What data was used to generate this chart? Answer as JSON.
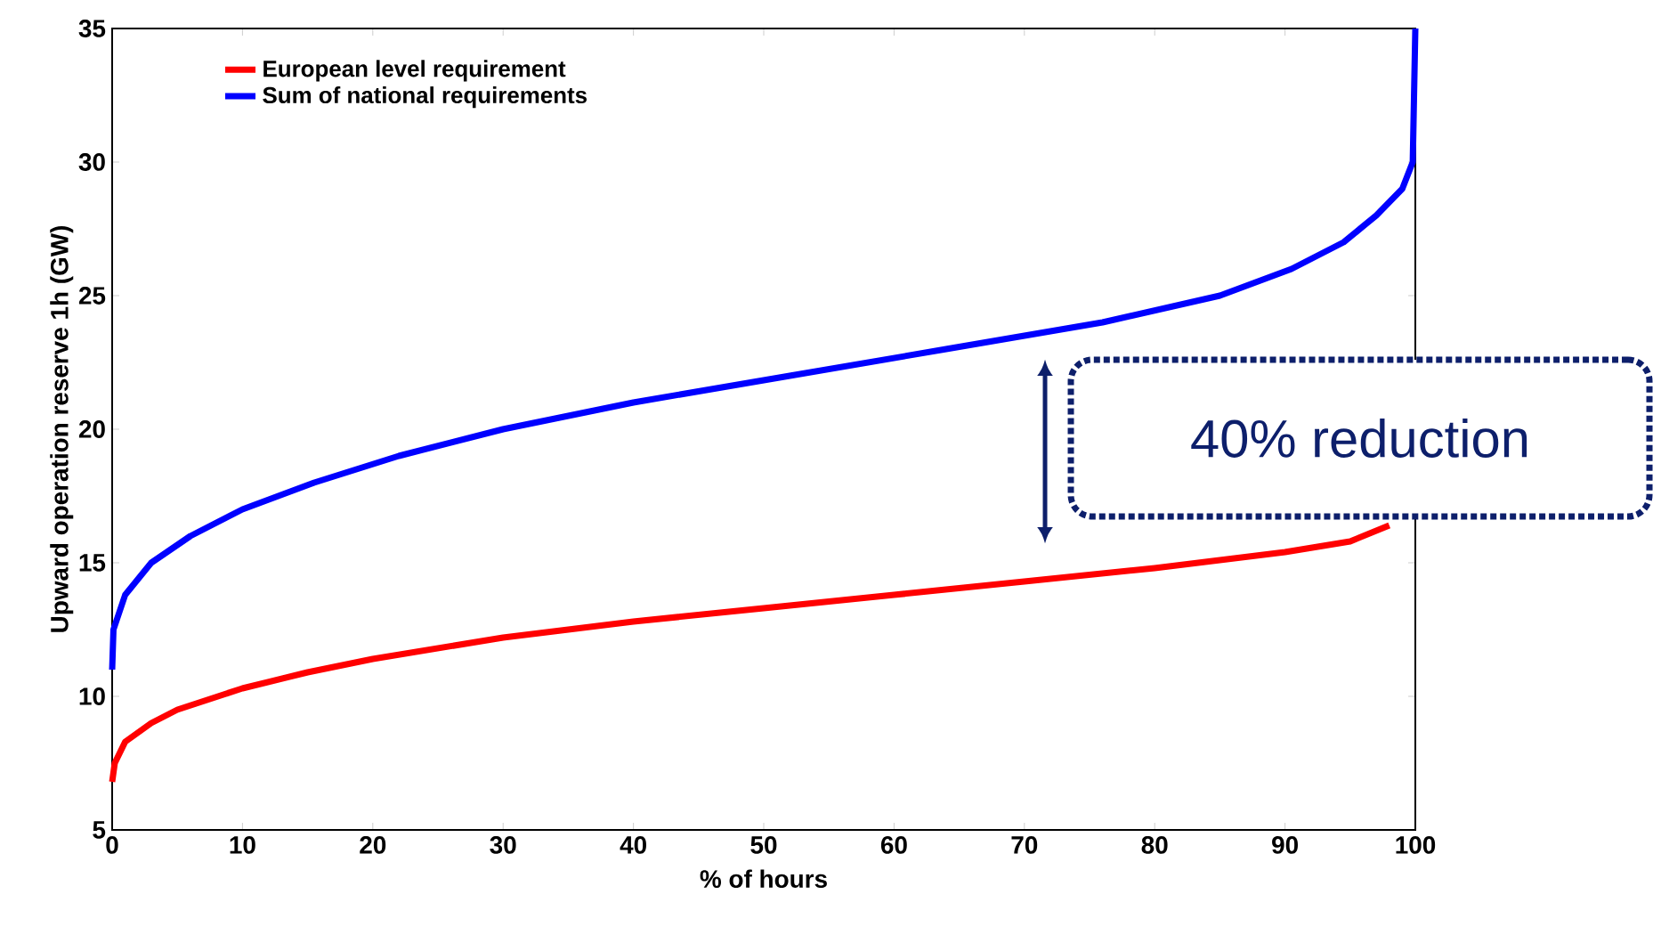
{
  "chart_data": {
    "type": "line",
    "xlabel": "% of hours",
    "ylabel": "Upward operation reserve 1h (GW)",
    "xlim": [
      0,
      100
    ],
    "ylim": [
      5,
      35
    ],
    "xticks": [
      0,
      10,
      20,
      30,
      40,
      50,
      60,
      70,
      80,
      90,
      100
    ],
    "yticks": [
      5,
      10,
      15,
      20,
      25,
      30,
      35
    ],
    "grid": false,
    "legend": "top left",
    "marker": "none",
    "line_style": "solid",
    "annotations": [
      "40% reduction"
    ],
    "series": [
      {
        "name": "European level requirement",
        "color": "#ff0000",
        "x": [
          0,
          0.2,
          1,
          3,
          5,
          10,
          15,
          20,
          30,
          40,
          50,
          60,
          70,
          80,
          90,
          95,
          98
        ],
        "values": [
          6.8,
          7.5,
          8.3,
          9,
          9.5,
          10.3,
          10.9,
          11.4,
          12.2,
          12.8,
          13.3,
          13.8,
          14.3,
          14.8,
          15.4,
          15.8,
          16.4
        ]
      },
      {
        "name": "Sum of national requirements",
        "color": "#0000ff",
        "x": [
          0,
          0.1,
          1,
          3,
          6,
          10,
          15.5,
          22,
          30,
          40,
          52,
          64,
          76,
          85,
          90.5,
          94.5,
          97,
          99,
          99.8,
          100
        ],
        "values": [
          11,
          12.5,
          13.8,
          15,
          16,
          17,
          18,
          19,
          20,
          21,
          22,
          23,
          24,
          25,
          26,
          27,
          28,
          29,
          30,
          35
        ]
      }
    ]
  }
}
